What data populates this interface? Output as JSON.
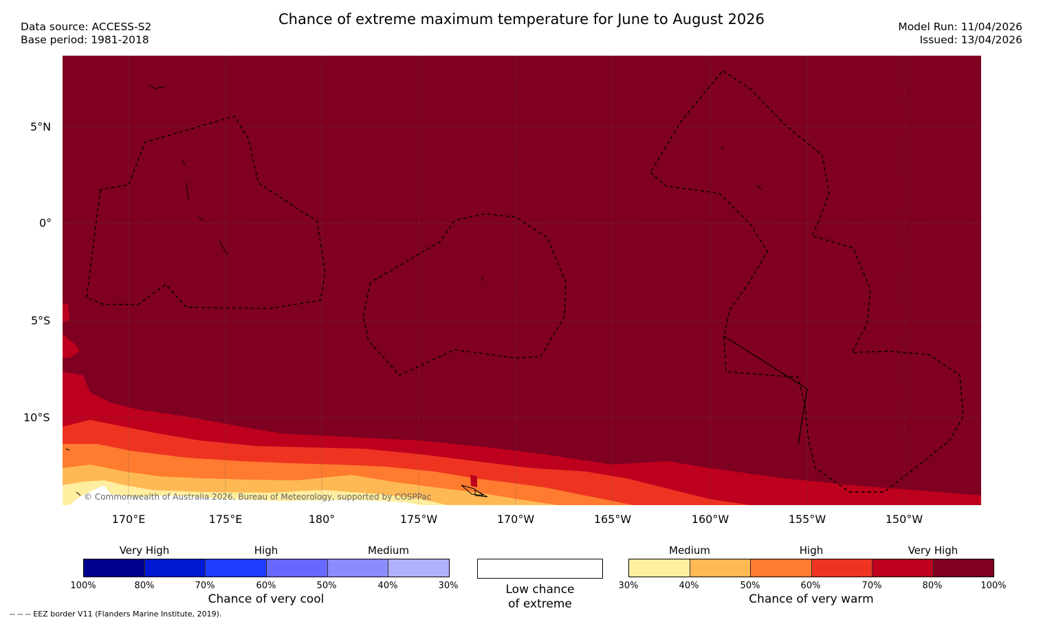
{
  "title": "Chance of extreme maximum temperature for June to August 2026",
  "meta": {
    "data_source": "Data source: ACCESS-S2",
    "base_period": "Base period: 1981-2018",
    "model_run": "Model Run: 11/04/2026",
    "issued": "Issued: 13/04/2026"
  },
  "map": {
    "lat_labels": [
      "5°N",
      "0°",
      "5°S",
      "10°S"
    ],
    "lon_labels": [
      "170°E",
      "175°E",
      "180°",
      "175°W",
      "170°W",
      "165°W",
      "160°W",
      "155°W",
      "150°W"
    ],
    "copyright": "© Commonwealth of Australia 2026, Bureau of Meteorology, supported by COSPPac",
    "base_color": "#7f0020"
  },
  "legend_cool": {
    "category_labels": [
      "Very High",
      "High",
      "Medium"
    ],
    "ticks": [
      "100%",
      "80%",
      "70%",
      "60%",
      "50%",
      "40%",
      "30%"
    ],
    "colors": [
      "#00008f",
      "#0019d2",
      "#1f3dff",
      "#6868ff",
      "#8c8cff",
      "#b0b0ff"
    ],
    "title": "Chance of very cool"
  },
  "legend_low": {
    "line1": "Low chance",
    "line2": "of extreme"
  },
  "legend_warm": {
    "category_labels": [
      "Medium",
      "High",
      "Very High"
    ],
    "ticks": [
      "30%",
      "40%",
      "50%",
      "60%",
      "70%",
      "80%",
      "100%"
    ],
    "colors": [
      "#ffeea0",
      "#feb955",
      "#fe7b2f",
      "#ee3421",
      "#bd001e",
      "#7f0020"
    ],
    "title": "Chance of very warm"
  },
  "footnote": "-- -- -- EEZ border V11 (Flanders Marine Institute, 2019)."
}
